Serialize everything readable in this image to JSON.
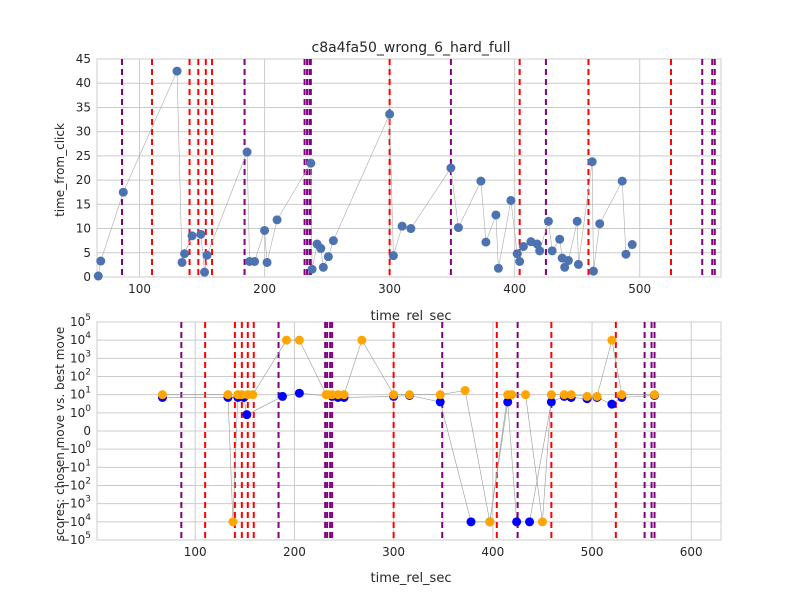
{
  "chart_data": [
    {
      "type": "scatter",
      "title": "c8a4fa50_wrong_6_hard_full",
      "xlabel": "time_rel_sec",
      "ylabel": "time_from_click",
      "xlim": [
        66,
        565
      ],
      "ylim": [
        0,
        45
      ],
      "grid": true,
      "xticks": [
        100,
        200,
        300,
        400,
        500
      ],
      "yticks": [
        0,
        5,
        10,
        15,
        20,
        25,
        30,
        35,
        40,
        45
      ],
      "marker_color": "#4c72b0",
      "connector_color": "#aaaaaa",
      "points": [
        [
          67,
          0.2
        ],
        [
          69,
          3.3
        ],
        [
          87,
          17.5
        ],
        [
          130,
          42.5
        ],
        [
          134,
          3.0
        ],
        [
          136,
          4.8
        ],
        [
          142,
          8.5
        ],
        [
          149,
          8.8
        ],
        [
          152,
          1.0
        ],
        [
          154,
          4.5
        ],
        [
          186,
          25.8
        ],
        [
          188,
          3.2
        ],
        [
          192,
          3.2
        ],
        [
          200,
          9.6
        ],
        [
          202,
          3.0
        ],
        [
          210,
          11.8
        ],
        [
          237,
          23.5
        ],
        [
          238,
          1.6
        ],
        [
          242,
          6.8
        ],
        [
          245,
          5.9
        ],
        [
          247,
          2.0
        ],
        [
          251,
          4.2
        ],
        [
          255,
          7.5
        ],
        [
          300,
          33.6
        ],
        [
          303,
          4.4
        ],
        [
          310,
          10.5
        ],
        [
          317,
          10.0
        ],
        [
          349,
          22.5
        ],
        [
          355,
          10.2
        ],
        [
          373,
          19.8
        ],
        [
          377,
          7.2
        ],
        [
          385,
          12.8
        ],
        [
          387,
          1.8
        ],
        [
          397,
          15.8
        ],
        [
          402,
          4.8
        ],
        [
          404,
          3.2
        ],
        [
          407,
          6.3
        ],
        [
          413,
          7.3
        ],
        [
          418,
          6.8
        ],
        [
          420,
          5.4
        ],
        [
          427,
          11.5
        ],
        [
          430,
          5.4
        ],
        [
          436,
          7.8
        ],
        [
          438,
          3.9
        ],
        [
          440,
          2.0
        ],
        [
          443,
          3.4
        ],
        [
          450,
          11.5
        ],
        [
          451,
          2.6
        ],
        [
          462,
          23.8
        ],
        [
          463,
          1.2
        ],
        [
          468,
          11.0
        ],
        [
          486,
          19.8
        ],
        [
          489,
          4.7
        ],
        [
          494,
          6.7
        ]
      ],
      "vlines": [
        {
          "color": "#800080",
          "x": [
            86,
            184,
            232,
            234,
            236,
            237,
            349,
            425,
            550,
            558,
            560
          ]
        },
        {
          "color": "#ff0000",
          "x": [
            110,
            140,
            147,
            153,
            158,
            300,
            404,
            459,
            525
          ]
        }
      ]
    },
    {
      "type": "scatter",
      "title": "",
      "xlabel": "time_rel_sec",
      "ylabel": "scores: chosen move vs. best move",
      "xlim": [
        1,
        630
      ],
      "yscale": "symlog",
      "ylim": [
        "-10^5",
        "10^5"
      ],
      "grid": true,
      "xticks": [
        100,
        200,
        300,
        400,
        500,
        600
      ],
      "ytick_labels": [
        "10^5",
        "10^4",
        "10^3",
        "10^2",
        "10^1",
        "10^0",
        "0",
        "-10^0",
        "-10^1",
        "-10^2",
        "-10^3",
        "-10^4",
        "-10^5"
      ],
      "series": [
        {
          "name": "",
          "color": "#0000ff",
          "points": [
            [
              67,
              7
            ],
            [
              133,
              7
            ],
            [
              143,
              7
            ],
            [
              149,
              7
            ],
            [
              152,
              0.9
            ],
            [
              188,
              8
            ],
            [
              205,
              12
            ],
            [
              238,
              8
            ],
            [
              244,
              7
            ],
            [
              250,
              7
            ],
            [
              300,
              8
            ],
            [
              316,
              9
            ],
            [
              347,
              4
            ],
            [
              378,
              -10000
            ],
            [
              397,
              -10000
            ],
            [
              415,
              4
            ],
            [
              424,
              -10000
            ],
            [
              437,
              -10000
            ],
            [
              459,
              4
            ],
            [
              472,
              8
            ],
            [
              479,
              7
            ],
            [
              495,
              6
            ],
            [
              505,
              7
            ],
            [
              520,
              3
            ],
            [
              530,
              7
            ],
            [
              563,
              9
            ]
          ]
        },
        {
          "name": "",
          "color": "#ffa500",
          "points": [
            [
              67,
              10
            ],
            [
              133,
              10
            ],
            [
              138,
              -10000
            ],
            [
              143,
              10
            ],
            [
              147,
              10
            ],
            [
              153,
              10
            ],
            [
              158,
              10
            ],
            [
              192,
              10000
            ],
            [
              205,
              10000
            ],
            [
              232,
              10
            ],
            [
              234,
              10
            ],
            [
              238,
              10
            ],
            [
              244,
              10
            ],
            [
              250,
              10
            ],
            [
              268,
              10000
            ],
            [
              300,
              10
            ],
            [
              316,
              10
            ],
            [
              347,
              10
            ],
            [
              372,
              17
            ],
            [
              397,
              -10000
            ],
            [
              415,
              10
            ],
            [
              419,
              10
            ],
            [
              433,
              10
            ],
            [
              450,
              -10000
            ],
            [
              459,
              10
            ],
            [
              472,
              10
            ],
            [
              479,
              10
            ],
            [
              495,
              8
            ],
            [
              505,
              8
            ],
            [
              520,
              10000
            ],
            [
              530,
              10
            ],
            [
              563,
              10
            ]
          ]
        }
      ],
      "vlines": [
        {
          "color": "#800080",
          "x": [
            86,
            184,
            231,
            233,
            236,
            238,
            349,
            425,
            553,
            560,
            563
          ]
        },
        {
          "color": "#ff0000",
          "x": [
            110,
            140,
            147,
            153,
            159,
            300,
            404,
            459,
            524
          ]
        }
      ]
    }
  ]
}
